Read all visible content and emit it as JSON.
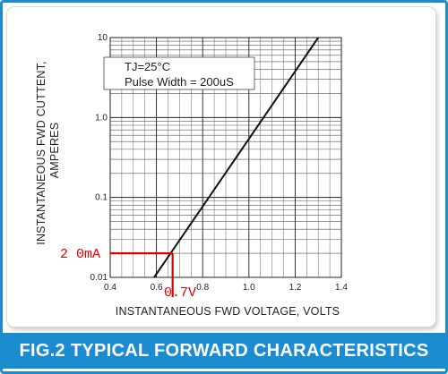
{
  "figure": {
    "caption": "FIG.2 TYPICAL FORWARD CHARACTERISTICS"
  },
  "chart_data": {
    "type": "line",
    "xlabel": "INSTANTANEOUS FWD VOLTAGE, VOLTS",
    "ylabel_line1": "INSTANTANEOUS FWD CUTTENT,",
    "ylabel_line2": "AMPERES",
    "xlim": [
      0.4,
      1.4
    ],
    "ylim": [
      0.01,
      10
    ],
    "y_scale": "log",
    "grid": true,
    "x_ticks": [
      0.4,
      0.6,
      0.8,
      1.0,
      1.2,
      1.4
    ],
    "x_tick_labels": [
      "0.4",
      "0.6",
      "0.8",
      "1.0",
      "1.2",
      "1.4"
    ],
    "y_ticks": [
      0.01,
      0.1,
      1,
      10
    ],
    "y_tick_labels": [
      "0.01",
      "0.1",
      "1.0",
      "10"
    ],
    "series": [
      {
        "x": [
          0.59,
          1.3
        ],
        "y": [
          0.01,
          10
        ],
        "color": "#111111"
      }
    ],
    "annotations": {
      "conditions_line1": "TJ=25°C",
      "conditions_line2": "Pulse Width = 200uS",
      "marker": {
        "x": 0.67,
        "y": 0.02,
        "color": "#e00000"
      },
      "marker_current_label": "2 0mA",
      "marker_voltage_label": "0.7V"
    }
  }
}
